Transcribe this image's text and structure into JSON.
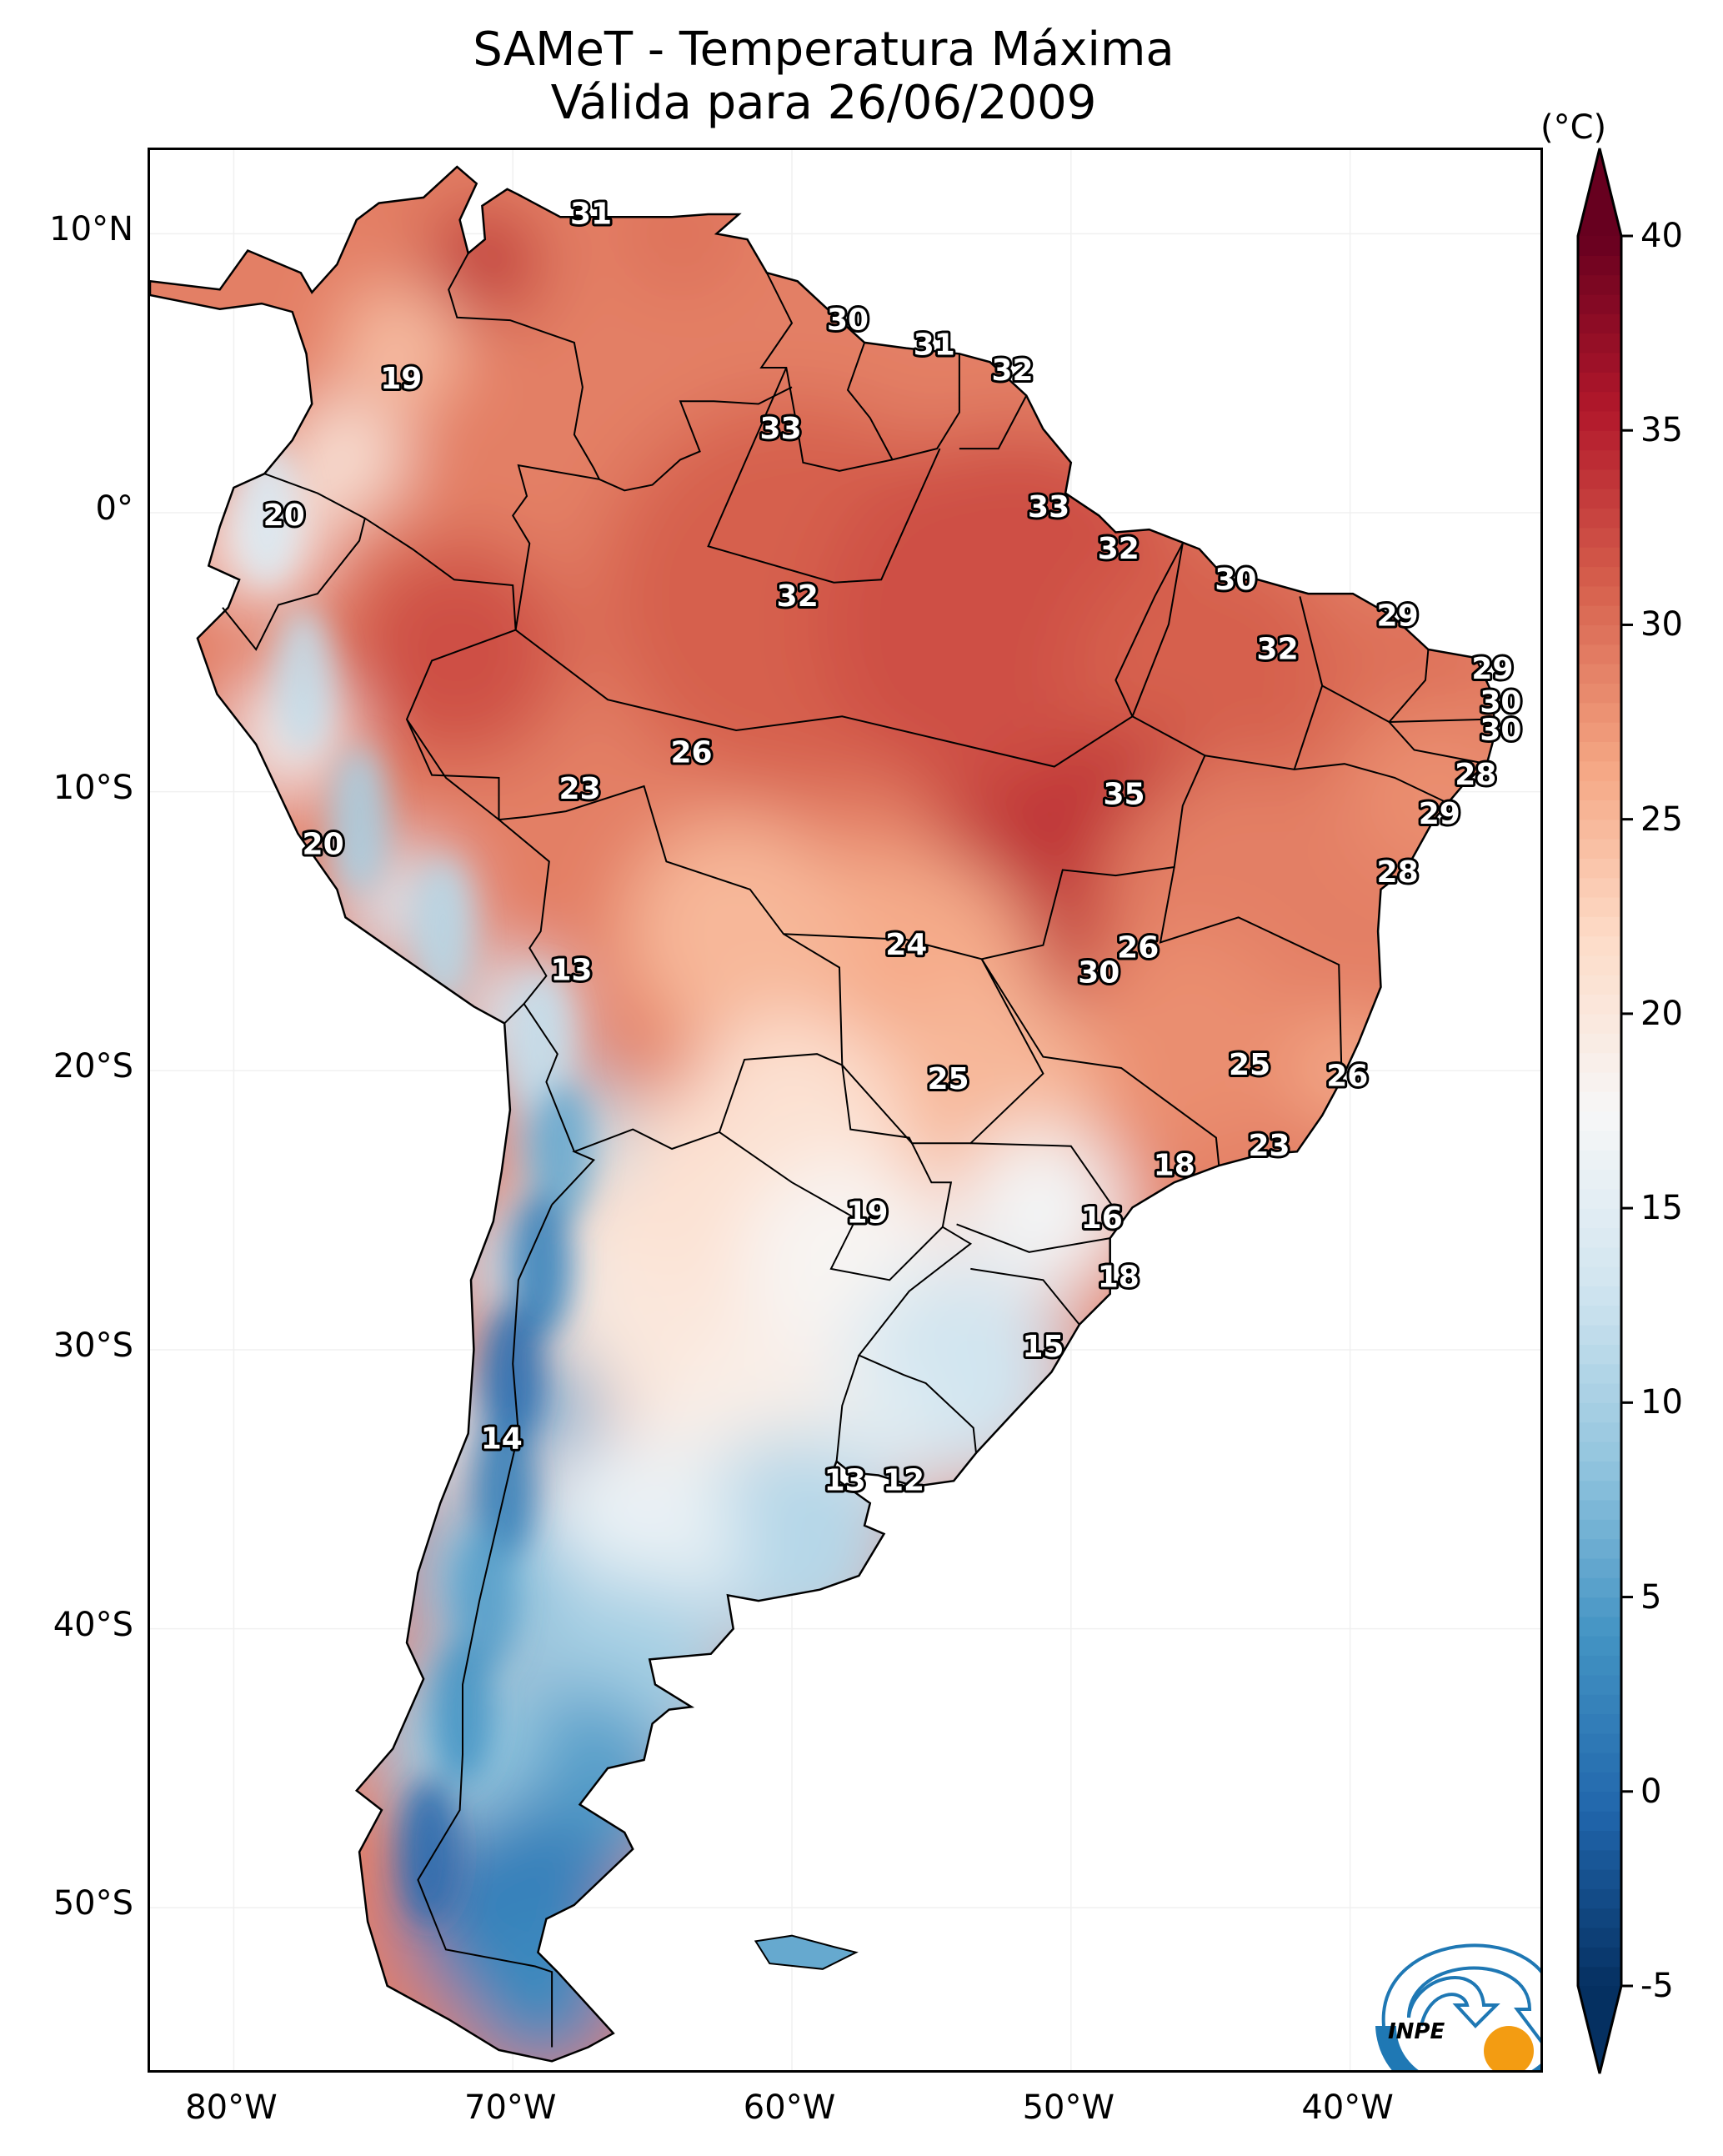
{
  "title": {
    "line1": "SAMeT - Temperatura Máxima",
    "line2": "Válida para 26/06/2009"
  },
  "chart_data": {
    "type": "heatmap",
    "title": "SAMeT - Temperatura Máxima",
    "subtitle": "Válida para 26/06/2009",
    "projection": "PlateCarree",
    "extent": {
      "lon": [
        -83,
        -33
      ],
      "lat": [
        -56,
        13
      ]
    },
    "xlabel": "",
    "ylabel": "",
    "x_ticks": [
      {
        "value": -80,
        "label": "80°W"
      },
      {
        "value": -70,
        "label": "70°W"
      },
      {
        "value": -60,
        "label": "60°W"
      },
      {
        "value": -50,
        "label": "50°W"
      },
      {
        "value": -40,
        "label": "40°W"
      }
    ],
    "y_ticks": [
      {
        "value": 10,
        "label": "10°N"
      },
      {
        "value": 0,
        "label": "0°"
      },
      {
        "value": -10,
        "label": "10°S"
      },
      {
        "value": -20,
        "label": "20°S"
      },
      {
        "value": -30,
        "label": "30°S"
      },
      {
        "value": -40,
        "label": "40°S"
      },
      {
        "value": -50,
        "label": "50°S"
      }
    ],
    "grid": true,
    "colorbar": {
      "label": "(°C)",
      "colormap": "RdBu_r",
      "vmin": -5,
      "vmax": 40,
      "extend": "both",
      "ticks": [
        40,
        35,
        30,
        25,
        20,
        15,
        10,
        5,
        0,
        -5
      ],
      "tick_labels": [
        "40",
        "35",
        "30",
        "25",
        "20",
        "15",
        "10",
        "5",
        "0",
        "-5"
      ],
      "placement": "right"
    },
    "value_labels": [
      {
        "value": 31,
        "lon": -67.2,
        "lat": 10.7
      },
      {
        "value": 19,
        "lon": -74.0,
        "lat": 4.8
      },
      {
        "value": 30,
        "lon": -58.0,
        "lat": 6.9
      },
      {
        "value": 31,
        "lon": -54.9,
        "lat": 6.0
      },
      {
        "value": 32,
        "lon": -52.1,
        "lat": 5.1
      },
      {
        "value": 33,
        "lon": -60.4,
        "lat": 3.0
      },
      {
        "value": 20,
        "lon": -78.2,
        "lat": -0.1
      },
      {
        "value": 33,
        "lon": -50.8,
        "lat": 0.2
      },
      {
        "value": 32,
        "lon": -48.3,
        "lat": -1.3
      },
      {
        "value": 30,
        "lon": -44.1,
        "lat": -2.4
      },
      {
        "value": 32,
        "lon": -59.8,
        "lat": -3.0
      },
      {
        "value": 29,
        "lon": -38.3,
        "lat": -3.7
      },
      {
        "value": 32,
        "lon": -42.6,
        "lat": -4.9
      },
      {
        "value": 29,
        "lon": -34.9,
        "lat": -5.6
      },
      {
        "value": 30,
        "lon": -34.6,
        "lat": -6.8
      },
      {
        "value": 30,
        "lon": -34.6,
        "lat": -7.8
      },
      {
        "value": 26,
        "lon": -63.6,
        "lat": -8.6
      },
      {
        "value": 23,
        "lon": -67.6,
        "lat": -9.9
      },
      {
        "value": 35,
        "lon": -48.1,
        "lat": -10.1
      },
      {
        "value": 28,
        "lon": -35.5,
        "lat": -9.4
      },
      {
        "value": 29,
        "lon": -36.8,
        "lat": -10.8
      },
      {
        "value": 20,
        "lon": -76.8,
        "lat": -11.9
      },
      {
        "value": 28,
        "lon": -38.3,
        "lat": -12.9
      },
      {
        "value": 24,
        "lon": -55.9,
        "lat": -15.5
      },
      {
        "value": 13,
        "lon": -67.9,
        "lat": -16.4
      },
      {
        "value": 26,
        "lon": -47.6,
        "lat": -15.6
      },
      {
        "value": 30,
        "lon": -49.0,
        "lat": -16.5
      },
      {
        "value": 25,
        "lon": -54.4,
        "lat": -20.3
      },
      {
        "value": 25,
        "lon": -43.6,
        "lat": -19.8
      },
      {
        "value": 26,
        "lon": -40.1,
        "lat": -20.2
      },
      {
        "value": 23,
        "lon": -42.9,
        "lat": -22.7
      },
      {
        "value": 18,
        "lon": -46.3,
        "lat": -23.4
      },
      {
        "value": 19,
        "lon": -57.3,
        "lat": -25.1
      },
      {
        "value": 16,
        "lon": -48.9,
        "lat": -25.3
      },
      {
        "value": 18,
        "lon": -48.3,
        "lat": -27.4
      },
      {
        "value": 15,
        "lon": -51.0,
        "lat": -29.9
      },
      {
        "value": 14,
        "lon": -70.4,
        "lat": -33.2
      },
      {
        "value": 13,
        "lon": -58.1,
        "lat": -34.7
      },
      {
        "value": 12,
        "lon": -56.0,
        "lat": -34.7
      }
    ]
  },
  "logo": {
    "text": "INPE",
    "colors": {
      "blue": "#1f78b4",
      "orange": "#f39c12"
    }
  }
}
